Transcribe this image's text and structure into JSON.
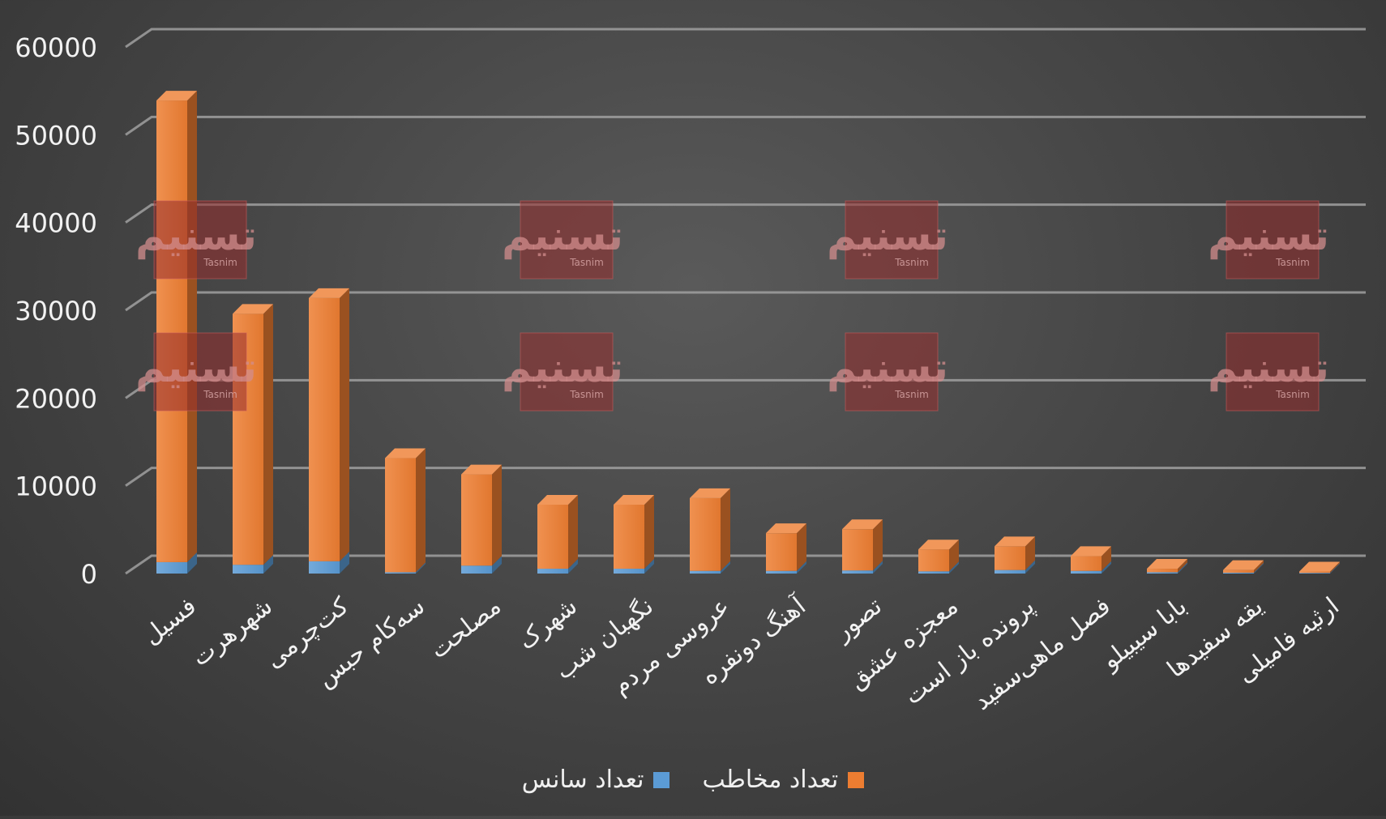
{
  "chart_data": {
    "type": "bar",
    "stacked": true,
    "three_d": true,
    "categories": [
      "فسیل",
      "شهرهرت",
      "کت‌چرمی",
      "سه‌کام حبس",
      "مصلحت",
      "شهرک",
      "نگهبان شب",
      "عروسی مردم",
      "آهنگ دونفره",
      "تصور",
      "معجزه عشق",
      "پرونده باز است",
      "فصل ماهی‌سفید",
      "بابا سیبیلو",
      "یقه سفیدها",
      "ارثیه فامیلی"
    ],
    "series": [
      {
        "name": "تعداد سانس",
        "color": "#5b9bd5",
        "values": [
          1300,
          1000,
          1400,
          150,
          900,
          550,
          550,
          300,
          300,
          350,
          250,
          400,
          300,
          150,
          100,
          80
        ]
      },
      {
        "name": "تعداد مخاطب",
        "color": "#ed7d31",
        "values": [
          52600,
          28600,
          30000,
          13000,
          10400,
          7300,
          7300,
          8300,
          4300,
          4700,
          2500,
          2700,
          1700,
          400,
          300,
          150
        ]
      }
    ],
    "ylim": [
      0,
      60000
    ],
    "yticks": [
      "0",
      "10000",
      "20000",
      "30000",
      "40000",
      "50000",
      "60000"
    ],
    "grid": true,
    "legend_position": "bottom",
    "watermark_text": "خبرگزاری Tasnim News Agency تسنیم"
  }
}
